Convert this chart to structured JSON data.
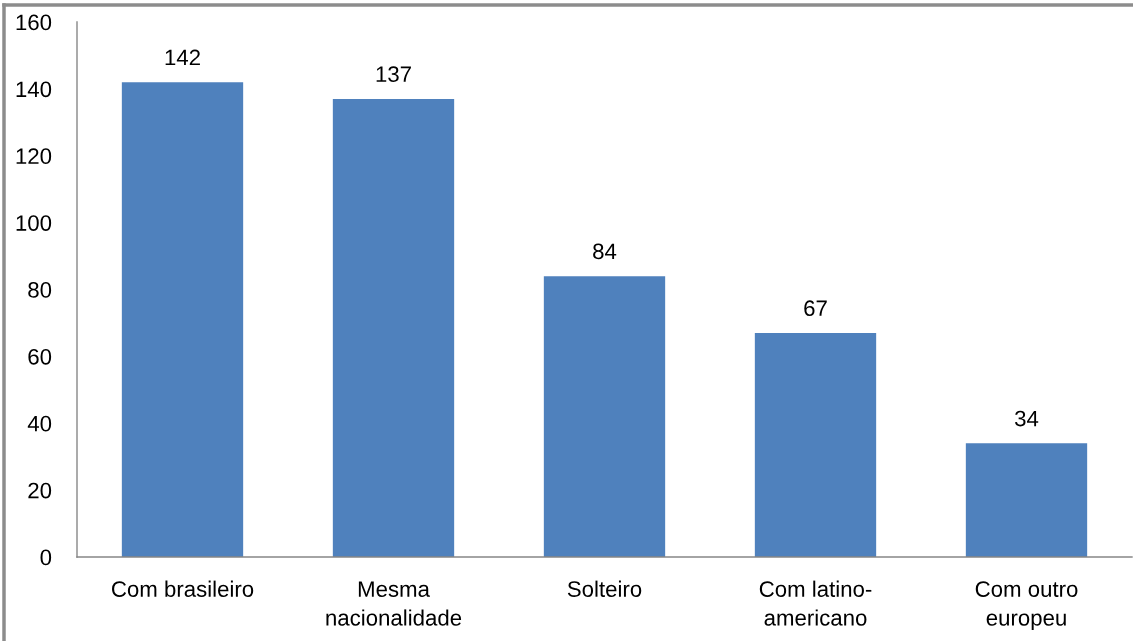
{
  "chart_data": {
    "type": "bar",
    "categories": [
      "Com brasileiro",
      "Mesma\nnacionalidade",
      "Solteiro",
      "Com latino-\namericano",
      "Com outro\neuropeu"
    ],
    "values": [
      142,
      137,
      84,
      67,
      34
    ],
    "color": "#4f81bd",
    "ylim": [
      0,
      160
    ],
    "yticks": [
      0,
      20,
      40,
      60,
      80,
      100,
      120,
      140,
      160
    ],
    "data_labels": true,
    "grid": false
  }
}
